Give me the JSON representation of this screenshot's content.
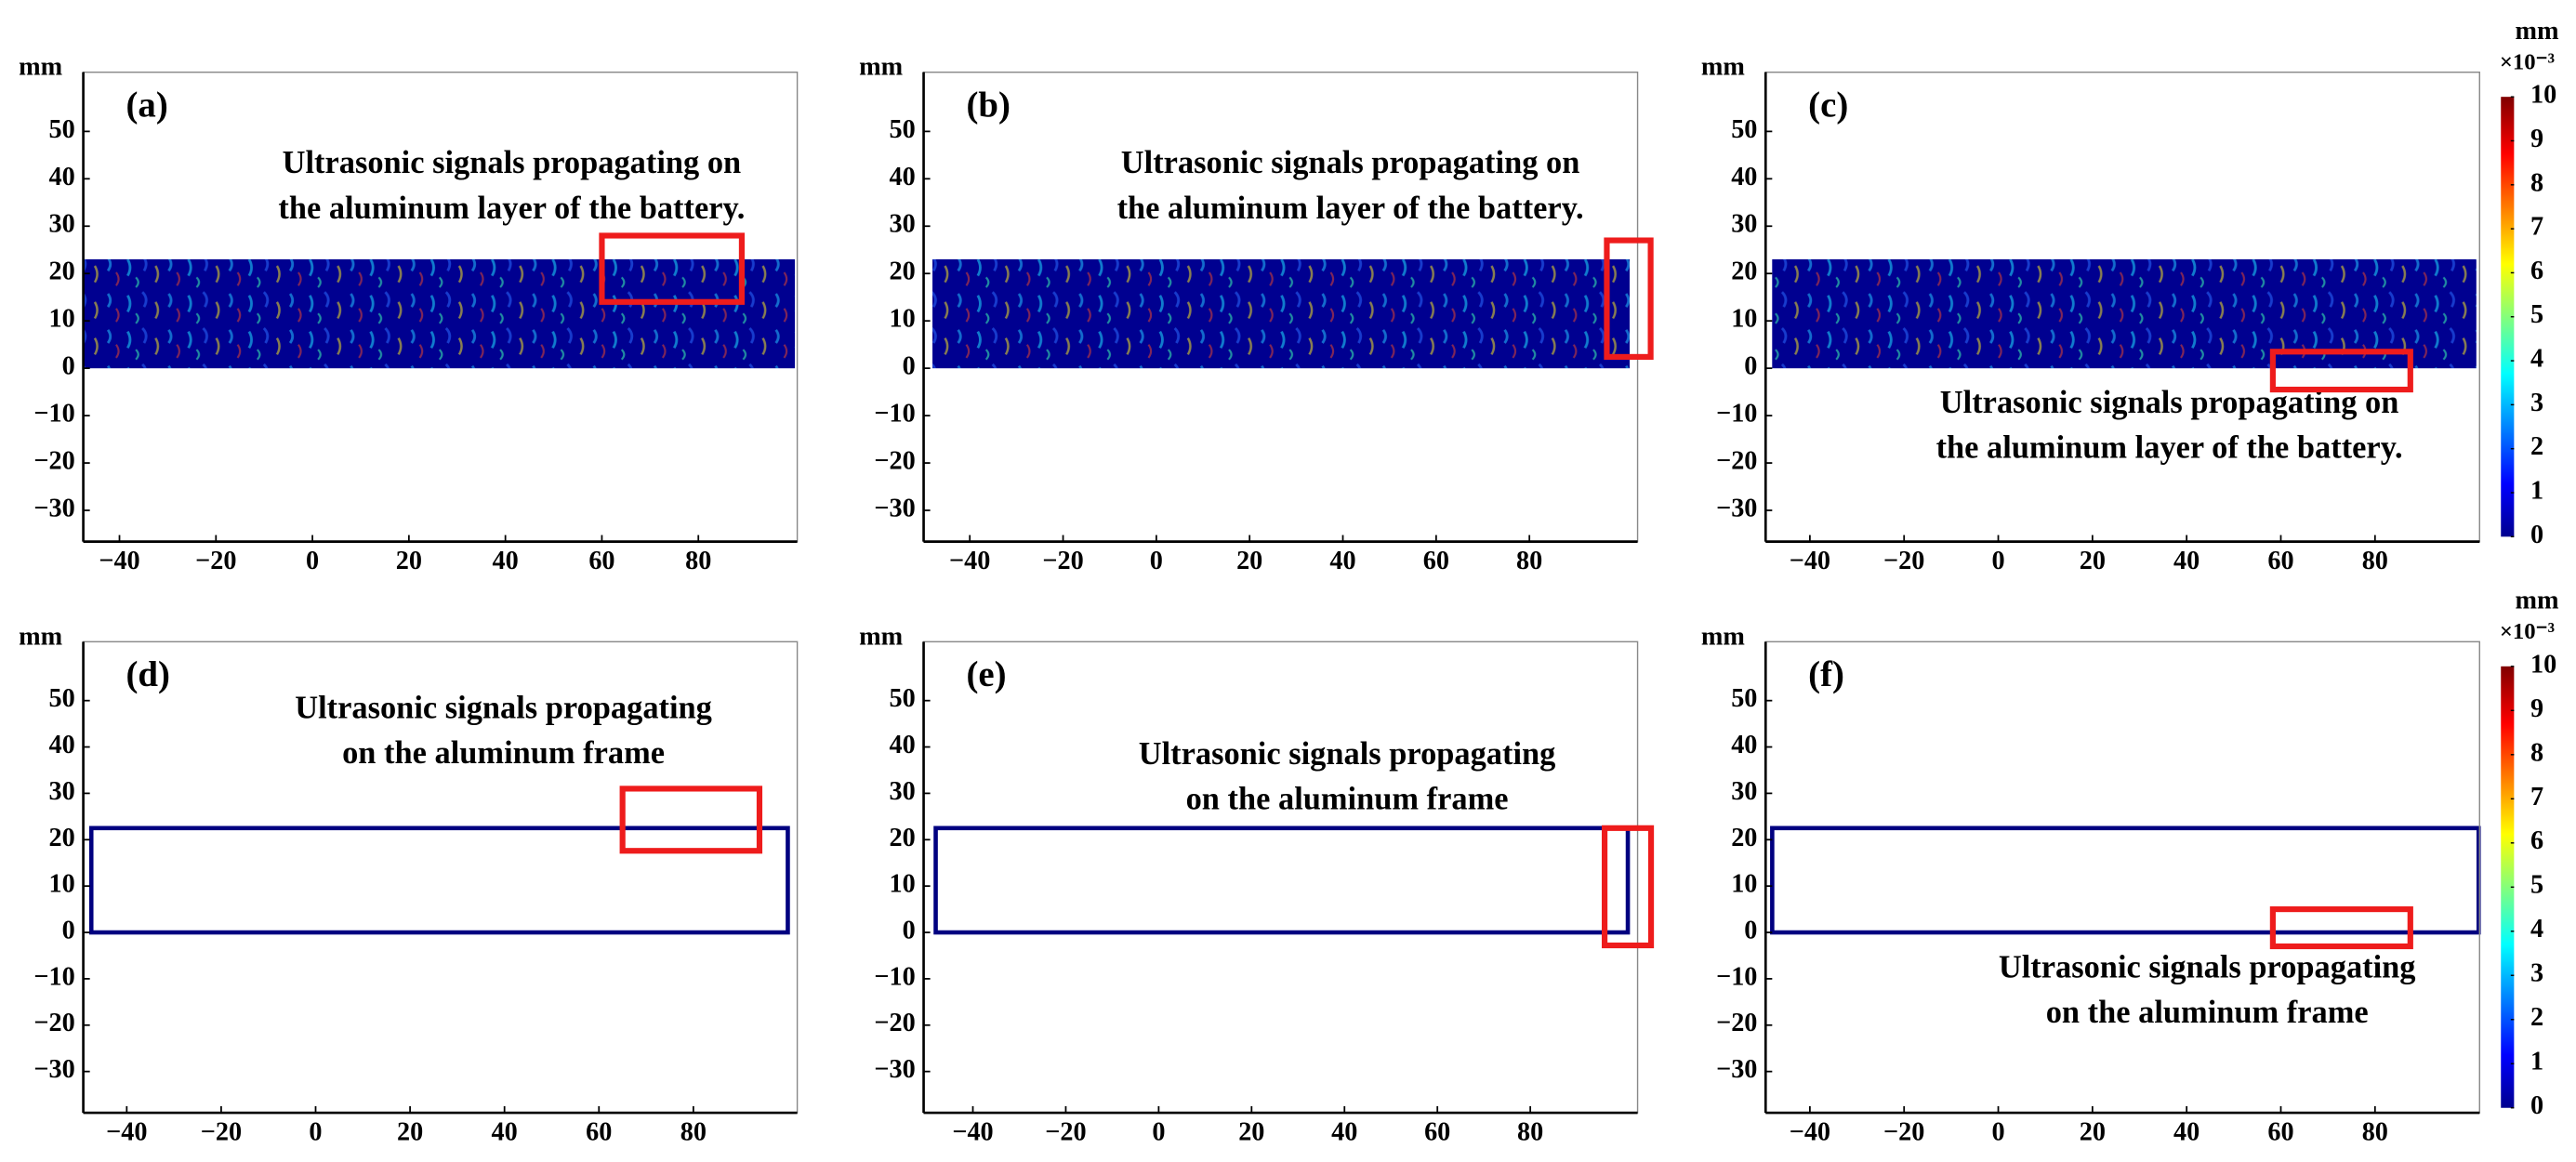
{
  "chart_data": [
    {
      "type": "field",
      "panel_label": "(a)",
      "ylabel": "mm",
      "annotation": [
        "Ultrasonic signals propagating on",
        "the aluminum layer of the battery."
      ],
      "xlim": [
        -47.5,
        100.5
      ],
      "ylim": [
        -36.6,
        62.5
      ],
      "xticks": [
        {
          "value": -40,
          "label": "−40"
        },
        {
          "value": -20,
          "label": "−20"
        },
        0,
        20,
        40,
        60,
        80
      ],
      "yticks": [
        {
          "value": -30,
          "label": "−30"
        },
        {
          "value": -20,
          "label": "−20"
        },
        {
          "value": -10,
          "label": "−10"
        },
        0,
        10,
        20,
        30,
        40,
        50
      ],
      "domain_x": [
        -47.5,
        100
      ],
      "domain_y": [
        0,
        23
      ],
      "highlight_x": [
        60,
        89
      ],
      "highlight_y": [
        14,
        28
      ],
      "color": "#000090",
      "highlight_color": "#ee1c1c"
    },
    {
      "type": "field",
      "panel_label": "(b)",
      "ylabel": "mm",
      "annotation": [
        "Ultrasonic signals propagating on",
        "the aluminum layer of the battery."
      ],
      "xlim": [
        -49.9,
        103.2
      ],
      "ylim": [
        -36.6,
        62.5
      ],
      "xticks": [
        {
          "value": -40,
          "label": "−40"
        },
        {
          "value": -20,
          "label": "−20"
        },
        0,
        20,
        40,
        60,
        80
      ],
      "yticks": [
        {
          "value": -30,
          "label": "−30"
        },
        {
          "value": -20,
          "label": "−20"
        },
        {
          "value": -10,
          "label": "−10"
        },
        0,
        10,
        20,
        30,
        40,
        50
      ],
      "domain_x": [
        -48,
        101.5
      ],
      "domain_y": [
        0,
        23
      ],
      "highlight_x": [
        96.6,
        106
      ],
      "highlight_y": [
        2.4,
        27
      ],
      "color": "#000090",
      "highlight_color": "#ee1c1c"
    },
    {
      "type": "field",
      "panel_label": "(c)",
      "ylabel": "mm",
      "annotation": [
        "Ultrasonic signals propagating on",
        "the aluminum layer of the battery."
      ],
      "xlim": [
        -49.4,
        102.2
      ],
      "ylim": [
        -36.6,
        62.5
      ],
      "xticks": [
        {
          "value": -40,
          "label": "−40"
        },
        {
          "value": -20,
          "label": "−20"
        },
        0,
        20,
        40,
        60,
        80
      ],
      "yticks": [
        {
          "value": -30,
          "label": "−30"
        },
        {
          "value": -20,
          "label": "−20"
        },
        {
          "value": -10,
          "label": "−10"
        },
        0,
        10,
        20,
        30,
        40,
        50
      ],
      "domain_x": [
        -48,
        101.5
      ],
      "domain_y": [
        0,
        23
      ],
      "highlight_x": [
        58.3,
        87.5
      ],
      "highlight_y": [
        -4.5,
        3.5
      ],
      "color": "#000090",
      "highlight_color": "#ee1c1c",
      "colorbar": {
        "label": "mm",
        "scale_label": "×10⁻³",
        "lim": [
          0,
          10
        ],
        "ticks": [
          0,
          1,
          2,
          3,
          4,
          5,
          6,
          7,
          8,
          9,
          10
        ]
      }
    },
    {
      "type": "frame",
      "panel_label": "(d)",
      "ylabel": "mm",
      "annotation": [
        "Ultrasonic signals propagating",
        "on the aluminum frame"
      ],
      "xlim": [
        -49.2,
        102
      ],
      "ylim": [
        -38.9,
        62.7
      ],
      "xticks": [
        {
          "value": -40,
          "label": "−40"
        },
        {
          "value": -20,
          "label": "−20"
        },
        0,
        20,
        40,
        60,
        80
      ],
      "yticks": [
        {
          "value": -30,
          "label": "−30"
        },
        {
          "value": -20,
          "label": "−20"
        },
        {
          "value": -10,
          "label": "−10"
        },
        0,
        10,
        20,
        30,
        40,
        50
      ],
      "domain_x": [
        -47.5,
        100
      ],
      "domain_y": [
        0,
        22.5
      ],
      "highlight_x": [
        65,
        94
      ],
      "highlight_y": [
        17.6,
        31
      ],
      "color": "#000080",
      "highlight_color": "#ee1c1c"
    },
    {
      "type": "frame",
      "panel_label": "(e)",
      "ylabel": "mm",
      "annotation": [
        "Ultrasonic signals propagating",
        "on the aluminum frame"
      ],
      "xlim": [
        -50.6,
        103.1
      ],
      "ylim": [
        -38.9,
        62.7
      ],
      "xticks": [
        {
          "value": -40,
          "label": "−40"
        },
        {
          "value": -20,
          "label": "−20"
        },
        0,
        20,
        40,
        60,
        80
      ],
      "yticks": [
        {
          "value": -30,
          "label": "−30"
        },
        {
          "value": -20,
          "label": "−20"
        },
        {
          "value": -10,
          "label": "−10"
        },
        0,
        10,
        20,
        30,
        40,
        50
      ],
      "domain_x": [
        -48,
        101
      ],
      "domain_y": [
        0,
        22.5
      ],
      "highlight_x": [
        96,
        106
      ],
      "highlight_y": [
        -2.8,
        22.5
      ],
      "color": "#000080",
      "highlight_color": "#ee1c1c"
    },
    {
      "type": "frame",
      "panel_label": "(f)",
      "ylabel": "mm",
      "annotation": [
        "Ultrasonic signals propagating",
        "on the aluminum frame"
      ],
      "xlim": [
        -49.4,
        102.2
      ],
      "ylim": [
        -38.9,
        62.7
      ],
      "xticks": [
        {
          "value": -40,
          "label": "−40"
        },
        {
          "value": -20,
          "label": "−20"
        },
        0,
        20,
        40,
        60,
        80
      ],
      "yticks": [
        {
          "value": -30,
          "label": "−30"
        },
        {
          "value": -20,
          "label": "−20"
        },
        {
          "value": -10,
          "label": "−10"
        },
        0,
        10,
        20,
        30,
        40,
        50
      ],
      "domain_x": [
        -48,
        102
      ],
      "domain_y": [
        0,
        22.5
      ],
      "highlight_x": [
        58.3,
        87.5
      ],
      "highlight_y": [
        -3,
        5
      ],
      "color": "#000080",
      "highlight_color": "#ee1c1c",
      "colorbar": {
        "label": "mm",
        "scale_label": "×10⁻³",
        "lim": [
          0,
          10
        ],
        "ticks": [
          0,
          1,
          2,
          3,
          4,
          5,
          6,
          7,
          8,
          9,
          10
        ]
      }
    }
  ]
}
